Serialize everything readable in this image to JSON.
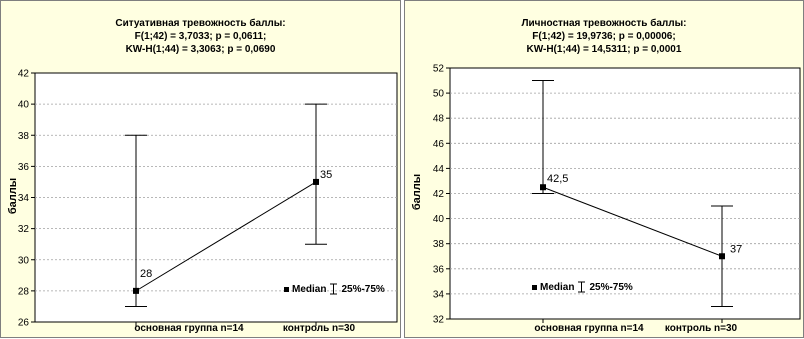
{
  "chart_data": [
    {
      "type": "scatter",
      "title": "Ситуативная тревожность баллы:",
      "subtitle_lines": [
        "F(1;42) = 3,7033; p = 0,0611;",
        "KW-H(1;44) = 3,3063; p = 0,0690"
      ],
      "ylabel": "баллы",
      "xlabel": "",
      "categories": [
        "основная группа n=14",
        "контроль n=30"
      ],
      "series": [
        {
          "name": "Median",
          "values": [
            28,
            35
          ],
          "value_labels": [
            "28",
            "35"
          ],
          "range_low": [
            27,
            31
          ],
          "range_high": [
            38,
            40
          ]
        }
      ],
      "range_legend": "25%-75%",
      "ylim": [
        26,
        42
      ],
      "yticks": [
        26,
        28,
        30,
        32,
        34,
        36,
        38,
        40,
        42
      ],
      "ytick_labels": [
        "26",
        "28",
        "30",
        "32",
        "34",
        "36",
        "38",
        "40",
        "42"
      ],
      "grid": true,
      "legend_placement": "bottom-right"
    },
    {
      "type": "scatter",
      "title": "Личностная тревожность баллы:",
      "subtitle_lines": [
        "F(1;42) = 19,9736; p = 0,00006;",
        "KW-H(1;44) = 14,5311; p = 0,0001"
      ],
      "ylabel": "баллы",
      "xlabel": "",
      "categories": [
        "основная группа n=14",
        "контроль n=30"
      ],
      "series": [
        {
          "name": "Median",
          "values": [
            42.5,
            37
          ],
          "value_labels": [
            "42,5",
            "37"
          ],
          "range_low": [
            42,
            33
          ],
          "range_high": [
            51,
            41
          ]
        }
      ],
      "range_legend": "25%-75%",
      "ylim": [
        32,
        52
      ],
      "yticks": [
        32,
        34,
        36,
        38,
        40,
        42,
        44,
        46,
        48,
        50,
        52
      ],
      "ytick_labels": [
        "32",
        "34",
        "36",
        "38",
        "40",
        "42",
        "44",
        "46",
        "48",
        "50",
        "52"
      ],
      "grid": true,
      "legend_placement": "bottom-left"
    }
  ],
  "colors": {
    "panel_background": "#ffffe1",
    "plot_background": "#ffffff",
    "ink": "#000000",
    "grid": "#a0a0a0"
  }
}
